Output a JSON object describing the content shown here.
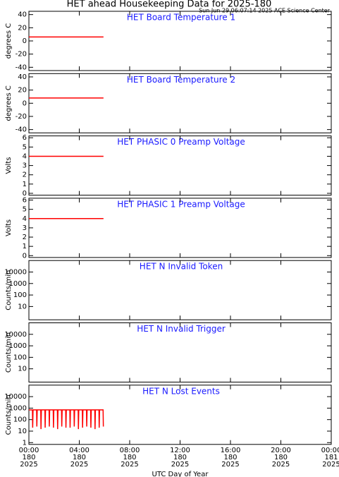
{
  "header": {
    "title": "HET ahead Housekeeping Data for 2025-180",
    "subtitle": "Sun Jun 29 06:07:14 2025 ACE Science Center"
  },
  "chart_data": [
    {
      "type": "line",
      "title": "HET Board Temperature 1",
      "ylabel": "degrees C",
      "ylim": [
        -45,
        45
      ],
      "yticks": [
        -40,
        -20,
        0,
        20,
        40
      ],
      "log": false,
      "series": [
        {
          "color": "#ff0000",
          "x": [
            0,
            5.92
          ],
          "values": [
            6,
            6
          ]
        }
      ]
    },
    {
      "type": "line",
      "title": "HET Board Temperature 2",
      "ylabel": "degrees C",
      "ylim": [
        -45,
        45
      ],
      "yticks": [
        -40,
        -20,
        0,
        20,
        40
      ],
      "log": false,
      "series": [
        {
          "color": "#ff0000",
          "x": [
            0,
            5.92
          ],
          "values": [
            8,
            8
          ]
        }
      ]
    },
    {
      "type": "line",
      "title": "HET PHASIC 0 Preamp Voltage",
      "ylabel": "Volts",
      "ylim": [
        -0.2,
        6.2
      ],
      "yticks": [
        0,
        1,
        2,
        3,
        4,
        5,
        6
      ],
      "log": false,
      "series": [
        {
          "color": "#ff0000",
          "x": [
            0,
            5.92
          ],
          "values": [
            4,
            4
          ]
        }
      ]
    },
    {
      "type": "line",
      "title": "HET PHASIC 1 Preamp Voltage",
      "ylabel": "Volts",
      "ylim": [
        -0.2,
        6.2
      ],
      "yticks": [
        0,
        1,
        2,
        3,
        4,
        5,
        6
      ],
      "log": false,
      "series": [
        {
          "color": "#ff0000",
          "x": [
            0,
            5.92
          ],
          "values": [
            4,
            4
          ]
        }
      ]
    },
    {
      "type": "line",
      "title": "HET N Invalid Token",
      "ylabel": "Counts/min",
      "ylim": [
        0.7,
        100000
      ],
      "yticks": [
        10,
        100,
        1000,
        10000
      ],
      "log": true,
      "series": []
    },
    {
      "type": "line",
      "title": "HET N Invalid Trigger",
      "ylabel": "Counts/min",
      "ylim": [
        0.7,
        100000
      ],
      "yticks": [
        10,
        100,
        1000,
        10000
      ],
      "log": true,
      "series": []
    },
    {
      "type": "line",
      "title": "HET N Lost Events",
      "ylabel": "Counts/min",
      "ylim": [
        0.7,
        100000
      ],
      "yticks": [
        1,
        10,
        100,
        1000,
        10000
      ],
      "log": true,
      "xlabel": "UTC Day of Year",
      "xlim": [
        0,
        24
      ],
      "xticks": [
        {
          "value": 0,
          "label": "00:00"
        },
        {
          "value": 4,
          "label": "04:00"
        },
        {
          "value": 8,
          "label": "08:00"
        },
        {
          "value": 12,
          "label": "12:00"
        },
        {
          "value": 16,
          "label": "16:00"
        },
        {
          "value": 20,
          "label": "20:00"
        },
        {
          "value": 24,
          "label": "00:00"
        }
      ],
      "xtick_days": [
        "180",
        "180",
        "180",
        "180",
        "180",
        "180",
        "181"
      ],
      "xtick_years": [
        "2025",
        "2025",
        "2025",
        "2025",
        "2025",
        "2025",
        "2025"
      ],
      "series": [
        {
          "color": "#ff0000",
          "x": [
            0,
            0.28,
            0.3,
            0.33,
            0.61,
            0.63,
            0.66,
            0.94,
            0.96,
            0.99,
            1.27,
            1.29,
            1.32,
            1.6,
            1.62,
            1.65,
            1.93,
            1.95,
            1.98,
            2.26,
            2.28,
            2.31,
            2.59,
            2.61,
            2.64,
            2.92,
            2.94,
            2.97,
            3.25,
            3.27,
            3.3,
            3.58,
            3.6,
            3.63,
            3.91,
            3.93,
            3.96,
            4.24,
            4.26,
            4.29,
            4.57,
            4.59,
            4.62,
            4.9,
            4.92,
            4.95,
            5.23,
            5.25,
            5.28,
            5.56,
            5.58,
            5.61,
            5.89,
            5.91
          ],
          "values": [
            700,
            700,
            20,
            700,
            700,
            25,
            700,
            700,
            15,
            700,
            700,
            20,
            700,
            700,
            25,
            700,
            700,
            20,
            700,
            700,
            15,
            700,
            700,
            25,
            700,
            700,
            20,
            700,
            700,
            20,
            700,
            700,
            25,
            700,
            700,
            15,
            700,
            700,
            20,
            700,
            700,
            25,
            700,
            700,
            20,
            700,
            700,
            15,
            700,
            700,
            20,
            700,
            700,
            25
          ]
        }
      ]
    }
  ]
}
